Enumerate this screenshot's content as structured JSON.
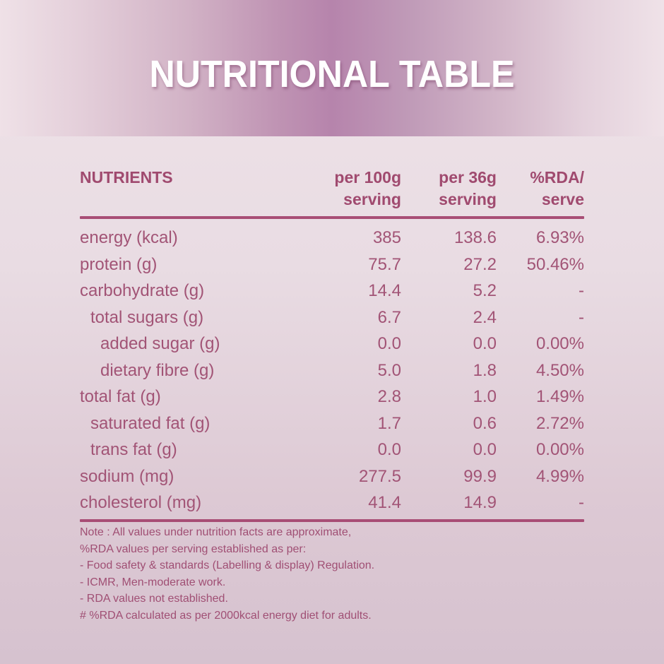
{
  "banner": {
    "title": "NUTRITIONAL TABLE"
  },
  "table": {
    "headers": [
      [
        "NUTRIENTS",
        ""
      ],
      [
        "per 100g",
        "serving"
      ],
      [
        "per 36g",
        "serving"
      ],
      [
        "%RDA/",
        "serve"
      ]
    ],
    "rows": [
      {
        "nutrient": "energy (kcal)",
        "per100g": "385",
        "per36g": "138.6",
        "rda": "6.93%",
        "indent": 0
      },
      {
        "nutrient": "protein (g)",
        "per100g": "75.7",
        "per36g": "27.2",
        "rda": "50.46%",
        "indent": 0
      },
      {
        "nutrient": "carbohydrate (g)",
        "per100g": "14.4",
        "per36g": "5.2",
        "rda": "-",
        "indent": 0
      },
      {
        "nutrient": "total sugars (g)",
        "per100g": "6.7",
        "per36g": "2.4",
        "rda": "-",
        "indent": 1
      },
      {
        "nutrient": "added sugar (g)",
        "per100g": "0.0",
        "per36g": "0.0",
        "rda": "0.00%",
        "indent": 2
      },
      {
        "nutrient": "dietary fibre (g)",
        "per100g": "5.0",
        "per36g": "1.8",
        "rda": "4.50%",
        "indent": 2
      },
      {
        "nutrient": "total fat (g)",
        "per100g": "2.8",
        "per36g": "1.0",
        "rda": "1.49%",
        "indent": 0
      },
      {
        "nutrient": "saturated fat (g)",
        "per100g": "1.7",
        "per36g": "0.6",
        "rda": "2.72%",
        "indent": 1
      },
      {
        "nutrient": "trans fat (g)",
        "per100g": "0.0",
        "per36g": "0.0",
        "rda": "0.00%",
        "indent": 1
      },
      {
        "nutrient": "sodium (mg)",
        "per100g": "277.5",
        "per36g": "99.9",
        "rda": "4.99%",
        "indent": 0
      },
      {
        "nutrient": "cholesterol (mg)",
        "per100g": "41.4",
        "per36g": "14.9",
        "rda": "-",
        "indent": 0
      }
    ]
  },
  "notes": [
    "Note : All values under nutrition facts are approximate,",
    "%RDA values per serving established as per:",
    "- Food safety & standards (Labelling & display) Regulation.",
    "- ICMR, Men-moderate work.",
    "- RDA values not established.",
    "# %RDA calculated as per 2000kcal energy diet for adults."
  ],
  "colors": {
    "accent": "#a84d75",
    "text": "#a25476",
    "banner_center": "#b684ac",
    "title": "#ffffff"
  }
}
